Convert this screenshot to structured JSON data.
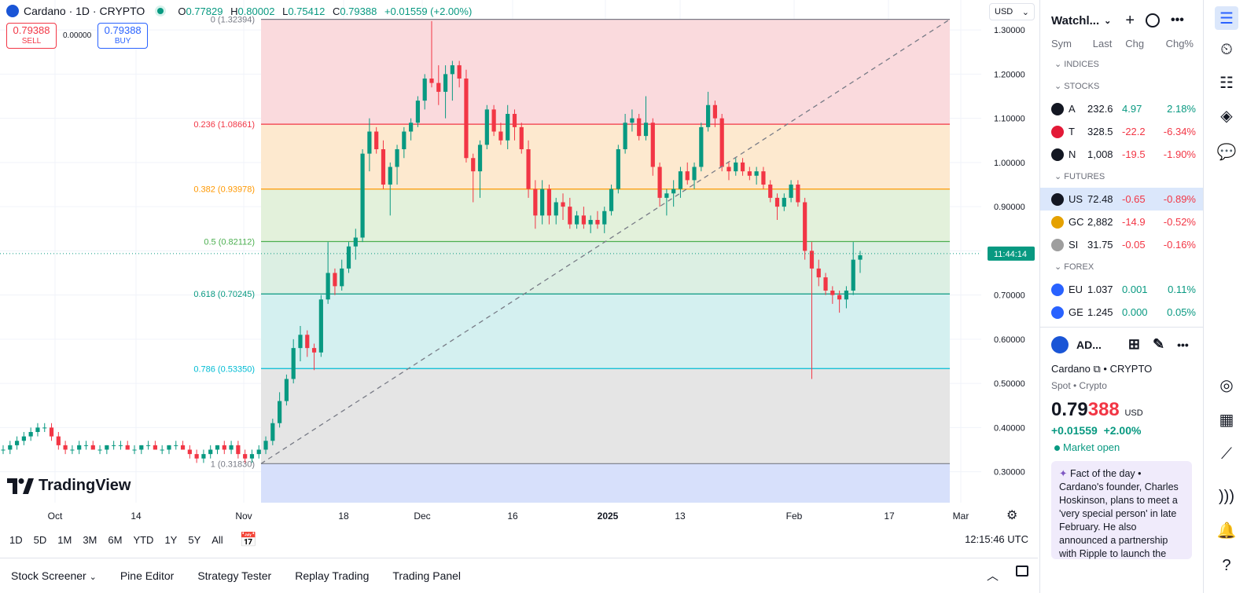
{
  "header": {
    "symbol_title": "Cardano · 1D · CRYPTO",
    "ohlc": {
      "o_label": "O",
      "o": "0.77829",
      "h_label": "H",
      "h": "0.80002",
      "l_label": "L",
      "l": "0.75412",
      "c_label": "C",
      "c": "0.79388",
      "change": "+0.01559 (+2.00%)"
    },
    "sell_price": "0.79388",
    "sell_label": "SELL",
    "spread": "0.00000",
    "buy_price": "0.79388",
    "buy_label": "BUY",
    "currency": "USD"
  },
  "price_axis": [
    "1.30000",
    "1.20000",
    "1.10000",
    "1.00000",
    "0.90000",
    "0.80000",
    "0.70000",
    "0.60000",
    "0.50000",
    "0.40000",
    "0.30000"
  ],
  "current_price_label": "11:44:14",
  "fib_levels": [
    {
      "label": "0 (1.32394)",
      "value": 1.32394,
      "color": "#787b86"
    },
    {
      "label": "0.236 (1.08661)",
      "value": 1.08661,
      "color": "#f23645"
    },
    {
      "label": "0.382 (0.93978)",
      "value": 0.93978,
      "color": "#ff9800"
    },
    {
      "label": "0.5 (0.82112)",
      "value": 0.82112,
      "color": "#4caf50"
    },
    {
      "label": "0.618 (0.70245)",
      "value": 0.70245,
      "color": "#089981"
    },
    {
      "label": "0.786 (0.53350)",
      "value": 0.5335,
      "color": "#00bcd4"
    },
    {
      "label": "1 (0.31830)",
      "value": 0.3183,
      "color": "#787b86"
    }
  ],
  "time_axis": [
    "Oct",
    "14",
    "Nov",
    "18",
    "Dec",
    "16",
    "2025",
    "13",
    "Feb",
    "17",
    "Mar"
  ],
  "time_axis_bold": "2025",
  "range_buttons": [
    "1D",
    "5D",
    "1M",
    "3M",
    "6M",
    "YTD",
    "1Y",
    "5Y",
    "All"
  ],
  "clock": "12:15:46 UTC",
  "panels": [
    "Stock Screener",
    "Pine Editor",
    "Strategy Tester",
    "Replay Trading",
    "Trading Panel"
  ],
  "watchlist": {
    "title": "Watchl...",
    "columns": [
      "Sym",
      "Last",
      "Chg",
      "Chg%"
    ],
    "sections": [
      {
        "name": "INDICES",
        "rows": []
      },
      {
        "name": "STOCKS",
        "rows": [
          {
            "sym": "A",
            "last": "232.6",
            "chg": "4.97",
            "pct": "2.18%",
            "dir": "up",
            "color": "#131722"
          },
          {
            "sym": "T",
            "last": "328.5",
            "chg": "-22.2",
            "pct": "-6.34%",
            "dir": "down",
            "color": "#e31937"
          },
          {
            "sym": "N",
            "last": "1,008",
            "chg": "-19.5",
            "pct": "-1.90%",
            "dir": "down",
            "color": "#131722"
          }
        ]
      },
      {
        "name": "FUTURES",
        "rows": [
          {
            "sym": "US",
            "last": "72.48",
            "chg": "-0.65",
            "pct": "-0.89%",
            "dir": "down",
            "color": "#131722",
            "active": true
          },
          {
            "sym": "GC",
            "last": "2,882",
            "chg": "-14.9",
            "pct": "-0.52%",
            "dir": "down",
            "color": "#e5a100"
          },
          {
            "sym": "SI",
            "last": "31.75",
            "chg": "-0.05",
            "pct": "-0.16%",
            "dir": "down",
            "color": "#9e9e9e"
          }
        ]
      },
      {
        "name": "FOREX",
        "rows": [
          {
            "sym": "EU",
            "last": "1.037",
            "chg": "0.001",
            "pct": "0.11%",
            "dir": "up",
            "color": "#2962ff"
          },
          {
            "sym": "GE",
            "last": "1.245",
            "chg": "0.000",
            "pct": "0.05%",
            "dir": "up",
            "color": "#2962ff"
          }
        ]
      }
    ]
  },
  "details": {
    "ticker": "AD...",
    "name": "Cardano",
    "exchange": "CRYPTO",
    "category": "Spot • Crypto",
    "price_main": "0.79",
    "price_tail": "388",
    "price_currency": "USD",
    "change": "+0.01559",
    "change_pct": "+2.00%",
    "market_status": "Market open",
    "fact": "Fact of the day • Cardano's founder, Charles Hoskinson, plans to meet a 'very special person' in late February. He also announced a partnership with Ripple to launch the RLUSD stablecoin on the"
  },
  "colors": {
    "up": "#089981",
    "down": "#f23645",
    "accent": "#2962ff"
  },
  "chart_data": {
    "type": "candlestick",
    "up_color": "#089981",
    "down_color": "#f23645",
    "ylim": [
      0.23,
      1.35
    ],
    "candles": [
      [
        0.35,
        0.36,
        0.34,
        0.35
      ],
      [
        0.35,
        0.37,
        0.34,
        0.36
      ],
      [
        0.36,
        0.38,
        0.35,
        0.37
      ],
      [
        0.37,
        0.39,
        0.36,
        0.38
      ],
      [
        0.38,
        0.4,
        0.37,
        0.39
      ],
      [
        0.39,
        0.41,
        0.38,
        0.4
      ],
      [
        0.4,
        0.41,
        0.39,
        0.4
      ],
      [
        0.4,
        0.41,
        0.37,
        0.38
      ],
      [
        0.38,
        0.39,
        0.35,
        0.36
      ],
      [
        0.36,
        0.37,
        0.34,
        0.35
      ],
      [
        0.35,
        0.36,
        0.34,
        0.35
      ],
      [
        0.35,
        0.37,
        0.34,
        0.36
      ],
      [
        0.36,
        0.37,
        0.35,
        0.36
      ],
      [
        0.36,
        0.37,
        0.35,
        0.35
      ],
      [
        0.35,
        0.36,
        0.34,
        0.35
      ],
      [
        0.35,
        0.36,
        0.34,
        0.36
      ],
      [
        0.36,
        0.37,
        0.35,
        0.36
      ],
      [
        0.36,
        0.37,
        0.35,
        0.36
      ],
      [
        0.36,
        0.37,
        0.35,
        0.35
      ],
      [
        0.35,
        0.36,
        0.34,
        0.35
      ],
      [
        0.35,
        0.36,
        0.34,
        0.36
      ],
      [
        0.36,
        0.37,
        0.35,
        0.36
      ],
      [
        0.36,
        0.37,
        0.35,
        0.35
      ],
      [
        0.35,
        0.36,
        0.34,
        0.35
      ],
      [
        0.35,
        0.36,
        0.34,
        0.36
      ],
      [
        0.36,
        0.37,
        0.35,
        0.36
      ],
      [
        0.36,
        0.37,
        0.35,
        0.35
      ],
      [
        0.35,
        0.36,
        0.33,
        0.34
      ],
      [
        0.34,
        0.35,
        0.32,
        0.33
      ],
      [
        0.33,
        0.35,
        0.32,
        0.34
      ],
      [
        0.34,
        0.36,
        0.33,
        0.35
      ],
      [
        0.35,
        0.36,
        0.34,
        0.36
      ],
      [
        0.36,
        0.37,
        0.34,
        0.35
      ],
      [
        0.35,
        0.37,
        0.34,
        0.36
      ],
      [
        0.36,
        0.37,
        0.33,
        0.34
      ],
      [
        0.34,
        0.35,
        0.32,
        0.33
      ],
      [
        0.33,
        0.35,
        0.32,
        0.34
      ],
      [
        0.34,
        0.36,
        0.33,
        0.35
      ],
      [
        0.35,
        0.38,
        0.34,
        0.37
      ],
      [
        0.37,
        0.42,
        0.36,
        0.41
      ],
      [
        0.41,
        0.48,
        0.4,
        0.46
      ],
      [
        0.46,
        0.52,
        0.45,
        0.51
      ],
      [
        0.51,
        0.6,
        0.5,
        0.58
      ],
      [
        0.58,
        0.63,
        0.55,
        0.61
      ],
      [
        0.61,
        0.62,
        0.56,
        0.58
      ],
      [
        0.58,
        0.59,
        0.53,
        0.57
      ],
      [
        0.57,
        0.7,
        0.56,
        0.69
      ],
      [
        0.69,
        0.82,
        0.68,
        0.75
      ],
      [
        0.75,
        0.76,
        0.7,
        0.72
      ],
      [
        0.72,
        0.78,
        0.71,
        0.76
      ],
      [
        0.76,
        0.82,
        0.75,
        0.81
      ],
      [
        0.81,
        0.85,
        0.78,
        0.83
      ],
      [
        0.83,
        1.03,
        0.82,
        1.02
      ],
      [
        1.02,
        1.1,
        0.98,
        1.07
      ],
      [
        1.07,
        1.08,
        1.02,
        1.03
      ],
      [
        1.03,
        1.05,
        0.94,
        0.95
      ],
      [
        0.95,
        1.0,
        0.88,
        0.99
      ],
      [
        0.99,
        1.04,
        0.95,
        1.03
      ],
      [
        1.03,
        1.08,
        1.01,
        1.07
      ],
      [
        1.07,
        1.1,
        1.05,
        1.09
      ],
      [
        1.09,
        1.15,
        1.08,
        1.14
      ],
      [
        1.14,
        1.2,
        1.12,
        1.19
      ],
      [
        1.19,
        1.32,
        1.17,
        1.18
      ],
      [
        1.18,
        1.22,
        1.13,
        1.16
      ],
      [
        1.16,
        1.22,
        1.1,
        1.2
      ],
      [
        1.2,
        1.23,
        1.14,
        1.22
      ],
      [
        1.22,
        1.23,
        1.17,
        1.19
      ],
      [
        1.19,
        1.21,
        1.0,
        1.01
      ],
      [
        1.01,
        1.02,
        0.91,
        0.98
      ],
      [
        0.98,
        1.05,
        0.92,
        1.04
      ],
      [
        1.04,
        1.13,
        1.03,
        1.12
      ],
      [
        1.12,
        1.13,
        1.06,
        1.07
      ],
      [
        1.07,
        1.09,
        1.04,
        1.05
      ],
      [
        1.05,
        1.13,
        1.03,
        1.11
      ],
      [
        1.11,
        1.12,
        1.05,
        1.08
      ],
      [
        1.08,
        1.09,
        1.02,
        1.03
      ],
      [
        1.03,
        1.05,
        0.92,
        0.94
      ],
      [
        0.94,
        0.96,
        0.85,
        0.88
      ],
      [
        0.88,
        0.96,
        0.86,
        0.94
      ],
      [
        0.94,
        0.95,
        0.86,
        0.88
      ],
      [
        0.88,
        0.92,
        0.86,
        0.91
      ],
      [
        0.91,
        0.93,
        0.87,
        0.9
      ],
      [
        0.9,
        0.92,
        0.85,
        0.86
      ],
      [
        0.86,
        0.89,
        0.85,
        0.88
      ],
      [
        0.88,
        0.9,
        0.85,
        0.86
      ],
      [
        0.86,
        0.88,
        0.84,
        0.87
      ],
      [
        0.87,
        0.89,
        0.85,
        0.86
      ],
      [
        0.86,
        0.9,
        0.84,
        0.89
      ],
      [
        0.89,
        0.95,
        0.88,
        0.94
      ],
      [
        0.94,
        1.04,
        0.93,
        1.03
      ],
      [
        1.03,
        1.11,
        1.02,
        1.09
      ],
      [
        1.09,
        1.12,
        1.07,
        1.1
      ],
      [
        1.1,
        1.11,
        1.05,
        1.06
      ],
      [
        1.06,
        1.15,
        1.05,
        1.09
      ],
      [
        1.09,
        1.1,
        0.97,
        0.99
      ],
      [
        0.99,
        1.0,
        0.9,
        0.92
      ],
      [
        0.92,
        0.94,
        0.88,
        0.93
      ],
      [
        0.93,
        0.96,
        0.9,
        0.94
      ],
      [
        0.94,
        0.99,
        0.92,
        0.98
      ],
      [
        0.98,
        1.0,
        0.95,
        0.96
      ],
      [
        0.96,
        1.0,
        0.94,
        0.99
      ],
      [
        0.99,
        1.09,
        0.98,
        1.08
      ],
      [
        1.08,
        1.16,
        1.07,
        1.13
      ],
      [
        1.13,
        1.14,
        1.08,
        1.1
      ],
      [
        1.1,
        1.11,
        0.98,
        0.99
      ],
      [
        0.99,
        1.0,
        0.96,
        0.98
      ],
      [
        0.98,
        1.01,
        0.97,
        1.0
      ],
      [
        1.0,
        1.01,
        0.97,
        0.98
      ],
      [
        0.98,
        0.99,
        0.96,
        0.97
      ],
      [
        0.97,
        0.99,
        0.95,
        0.98
      ],
      [
        0.98,
        0.99,
        0.94,
        0.95
      ],
      [
        0.95,
        0.96,
        0.91,
        0.92
      ],
      [
        0.92,
        0.93,
        0.87,
        0.9
      ],
      [
        0.9,
        0.93,
        0.89,
        0.92
      ],
      [
        0.92,
        0.96,
        0.91,
        0.95
      ],
      [
        0.95,
        0.96,
        0.9,
        0.91
      ],
      [
        0.91,
        0.92,
        0.78,
        0.8
      ],
      [
        0.8,
        0.82,
        0.51,
        0.76
      ],
      [
        0.76,
        0.78,
        0.72,
        0.74
      ],
      [
        0.74,
        0.75,
        0.7,
        0.71
      ],
      [
        0.71,
        0.72,
        0.68,
        0.7
      ],
      [
        0.7,
        0.71,
        0.66,
        0.69
      ],
      [
        0.69,
        0.72,
        0.67,
        0.71
      ],
      [
        0.71,
        0.82,
        0.7,
        0.78
      ],
      [
        0.78,
        0.8,
        0.75,
        0.79
      ]
    ]
  }
}
